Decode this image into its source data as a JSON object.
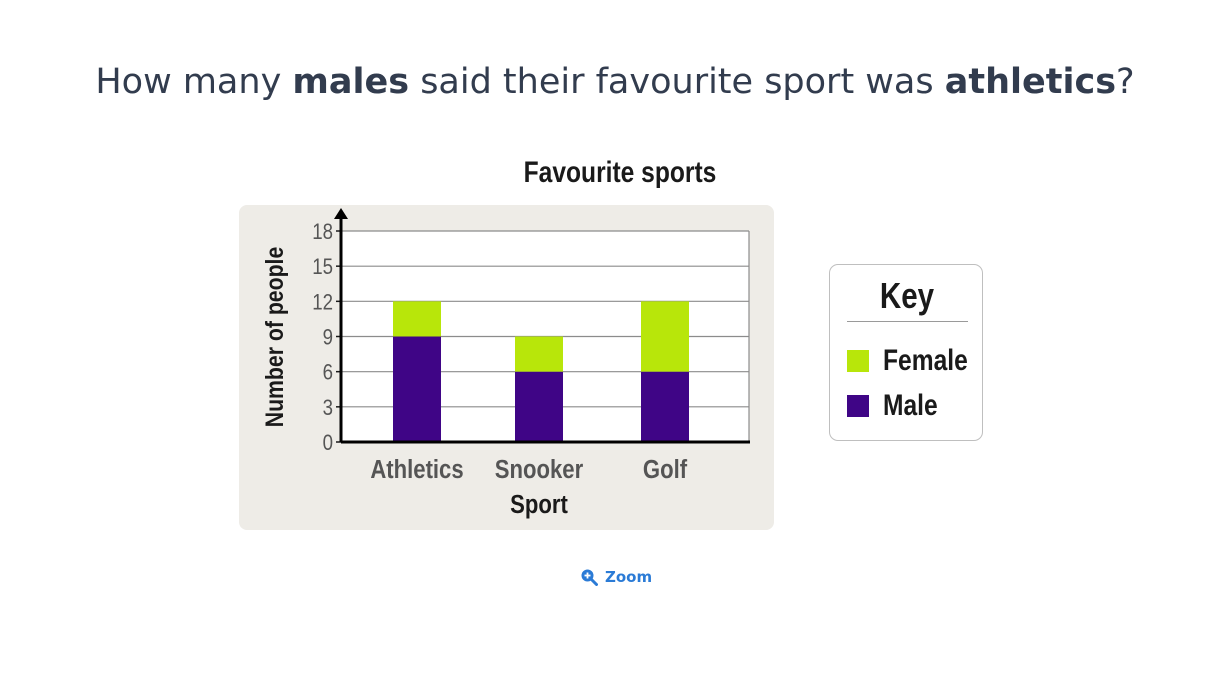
{
  "question": {
    "part1": "How many ",
    "bold1": "males",
    "part2": " said their favourite sport was ",
    "bold2": "athletics",
    "part3": "?"
  },
  "chart_data": {
    "type": "bar",
    "stacked": true,
    "title": "Favourite sports",
    "xlabel": "Sport",
    "ylabel": "Number of people",
    "categories": [
      "Athletics",
      "Snooker",
      "Golf"
    ],
    "series": [
      {
        "name": "Male",
        "values": [
          9,
          6,
          6
        ],
        "color": "#3f0586"
      },
      {
        "name": "Female",
        "values": [
          3,
          3,
          6
        ],
        "color": "#b8e60a"
      }
    ],
    "ylim": [
      0,
      18
    ],
    "yticks": [
      "0",
      "3",
      "6",
      "9",
      "12",
      "15",
      "18"
    ],
    "grid": true,
    "legend_placement": "right"
  },
  "key": {
    "title": "Key",
    "items": [
      {
        "label": "Female",
        "color": "#b8e60a"
      },
      {
        "label": "Male",
        "color": "#3f0586"
      }
    ]
  },
  "zoom": {
    "label": "Zoom",
    "icon": "zoom-in-icon"
  }
}
